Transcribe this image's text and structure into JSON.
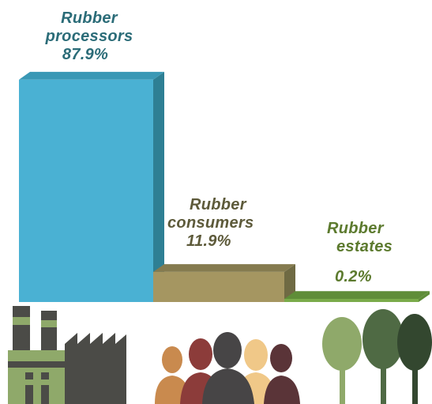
{
  "chart_data": {
    "type": "bar",
    "categories": [
      [
        "Rubber",
        "processors"
      ],
      [
        "Rubber",
        "consumers"
      ],
      [
        "Rubber",
        "estates"
      ]
    ],
    "values": [
      87.9,
      11.9,
      0.2
    ],
    "value_labels": [
      "87.9%",
      "11.9%",
      "0.2%"
    ],
    "ylim": [
      0,
      100
    ],
    "grid": false,
    "colors": {
      "processors_front": "#4ab1d3",
      "processors_side": "#2e7f94",
      "processors_top": "#3a98b5",
      "processors_label": "#2b6c78",
      "consumers_front": "#a59661",
      "consumers_side": "#6f6a43",
      "consumers_top": "#857b4f",
      "consumers_label": "#5d5a3a",
      "estates_front": "#7aab4a",
      "estates_top": "#5f8d38",
      "estates_label": "#5c7a2e"
    }
  },
  "icons": [
    "factory-icon",
    "people-icon",
    "trees-icon"
  ]
}
